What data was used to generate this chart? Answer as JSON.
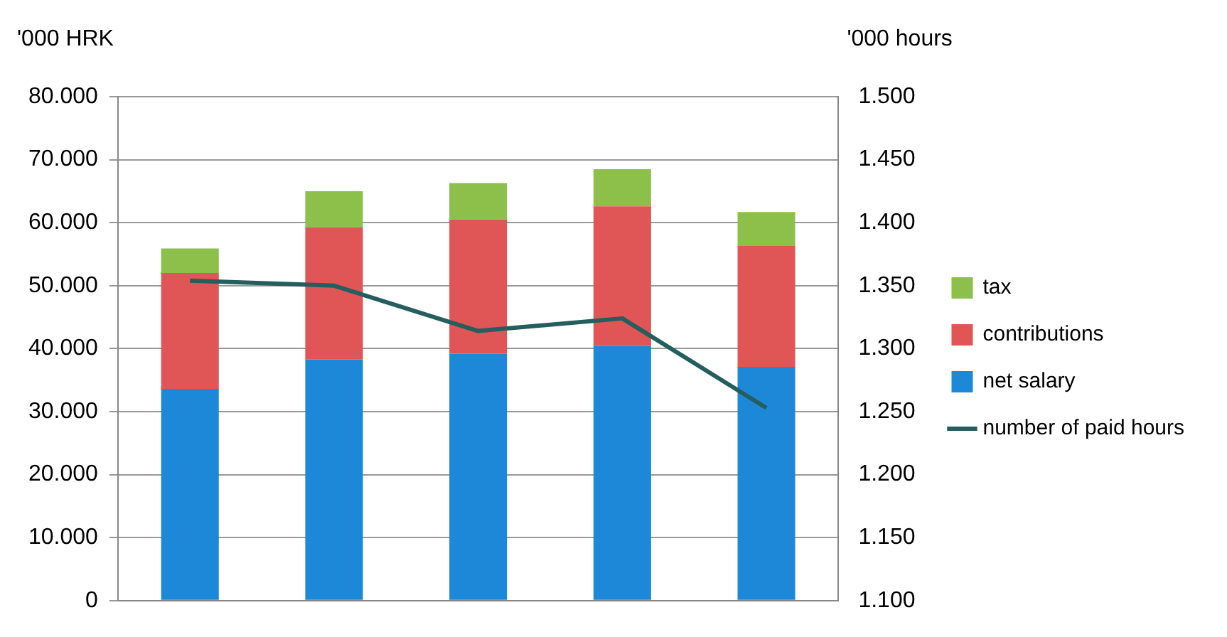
{
  "chart_data": {
    "type": "bar",
    "stacked": true,
    "ylabel": "'000 HRK",
    "y2label": "'000 hours",
    "categories": [
      null,
      null,
      null,
      null,
      null
    ],
    "series": [
      {
        "name": "net salary",
        "color": "#1e88d8",
        "values": [
          33600,
          38300,
          39200,
          40400,
          37100
        ]
      },
      {
        "name": "contributions",
        "color": "#e05555",
        "values": [
          18400,
          21000,
          21300,
          22200,
          19200
        ]
      },
      {
        "name": "tax",
        "color": "#8cc04a",
        "values": [
          3900,
          5700,
          5800,
          5900,
          5400
        ]
      },
      {
        "name": "number of paid hours",
        "type": "line",
        "axis": "y2",
        "color": "#255e5e",
        "values": [
          1354,
          1350,
          1314,
          1324,
          1253
        ]
      }
    ],
    "ylim": [
      0,
      80000
    ],
    "yticks": [
      0,
      {
        "value": 10000,
        "label": "10.000"
      },
      {
        "value": 20000,
        "label": "20.000"
      },
      {
        "value": 30000,
        "label": "30.000"
      },
      {
        "value": 40000,
        "label": "40.000"
      },
      {
        "value": 50000,
        "label": "50.000"
      },
      {
        "value": 60000,
        "label": "60.000"
      },
      {
        "value": 70000,
        "label": "70.000"
      },
      {
        "value": 80000,
        "label": "80.000"
      }
    ],
    "y2lim": [
      1100,
      1500
    ],
    "y2ticks": [
      {
        "value": 1100,
        "label": "1.100"
      },
      {
        "value": 1150,
        "label": "1.150"
      },
      {
        "value": 1200,
        "label": "1.200"
      },
      {
        "value": 1250,
        "label": "1.250"
      },
      {
        "value": 1300,
        "label": "1.300"
      },
      {
        "value": 1350,
        "label": "1.350"
      },
      {
        "value": 1400,
        "label": "1.400"
      },
      {
        "value": 1450,
        "label": "1.450"
      },
      {
        "value": 1500,
        "label": "1.500"
      }
    ],
    "grid": "y",
    "legend": "right",
    "marker": "none"
  }
}
